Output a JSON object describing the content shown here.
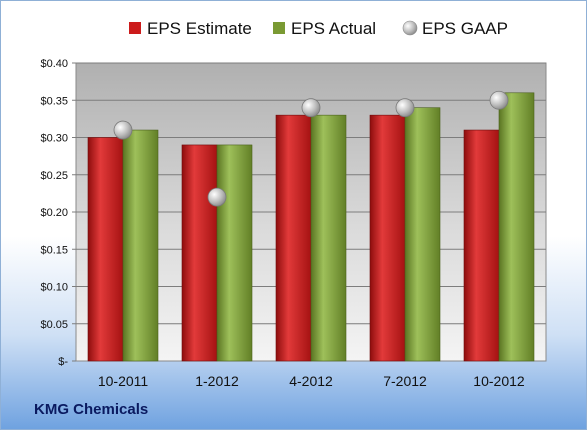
{
  "colors": {
    "estimate": "#cc1b1b",
    "actual": "#7a9a33",
    "gaap": "#b8b8b8"
  },
  "footer_label": "KMG Chemicals",
  "chart_data": {
    "type": "bar",
    "categories": [
      "10-2011",
      "1-2012",
      "4-2012",
      "7-2012",
      "10-2012"
    ],
    "series": [
      {
        "name": "EPS Estimate",
        "values": [
          0.3,
          0.29,
          0.33,
          0.33,
          0.31
        ]
      },
      {
        "name": "EPS Actual",
        "values": [
          0.31,
          0.29,
          0.33,
          0.34,
          0.36
        ]
      },
      {
        "name": "EPS GAAP",
        "values": [
          0.31,
          0.22,
          0.34,
          0.34,
          0.35
        ],
        "style": "marker"
      }
    ],
    "ylim": [
      0,
      0.4
    ],
    "yticks": [
      "$-",
      "$0.05",
      "$0.10",
      "$0.15",
      "$0.20",
      "$0.25",
      "$0.30",
      "$0.35",
      "$0.40"
    ],
    "grid": true,
    "legend_position": "top"
  }
}
